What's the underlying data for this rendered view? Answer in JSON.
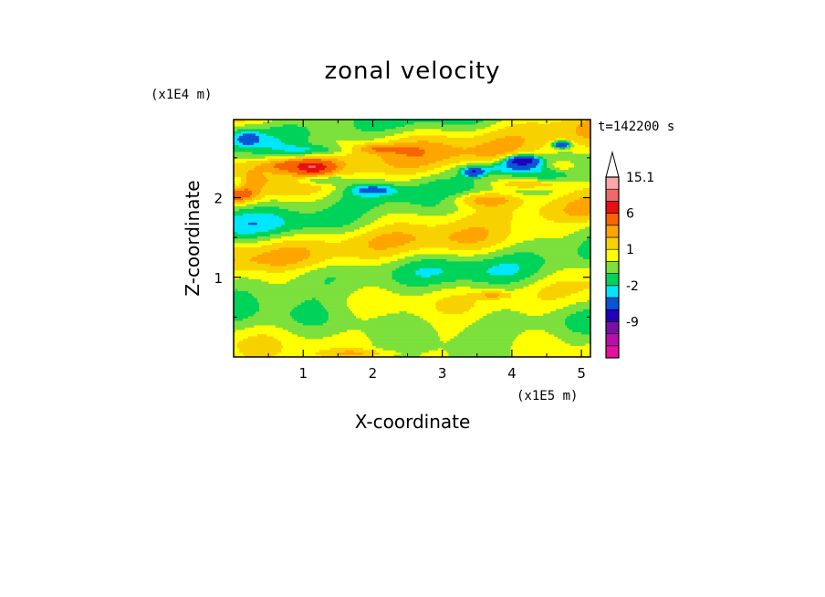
{
  "chart_data": {
    "type": "heatmap",
    "title": "zonal velocity",
    "xlabel": "X-coordinate",
    "ylabel": "Z-coordinate",
    "x_unit": "(x1E5 m)",
    "y_unit": "(x1E4 m)",
    "time_label": "t=142200 s",
    "xlim": [
      0,
      5.13
    ],
    "ylim": [
      0,
      2.98
    ],
    "x_ticks": [
      "1",
      "2",
      "3",
      "4",
      "5"
    ],
    "y_ticks": [
      "1",
      "2"
    ],
    "x_tick_values": [
      1,
      2,
      3,
      4,
      5
    ],
    "y_tick_values": [
      1,
      2
    ],
    "colorbar": {
      "labels": [
        "15.1",
        "6",
        "1",
        "-2",
        "-9"
      ],
      "label_values": [
        15.1,
        6,
        1,
        -2,
        -9
      ],
      "extend": "max",
      "levels": [
        -15,
        -12,
        -9,
        -6,
        -3,
        -2,
        -1,
        0,
        1,
        2,
        3,
        6,
        9,
        12,
        15.1
      ],
      "colors": [
        "#e60fa0",
        "#b90fa8",
        "#7b0fa5",
        "#1f00b8",
        "#0a54d6",
        "#00e6ff",
        "#00d35a",
        "#7de03c",
        "#ffff00",
        "#f8d200",
        "#ffa500",
        "#f76400",
        "#e61010",
        "#ee6a6a",
        "#f8a8a8",
        "#ffffff"
      ]
    }
  }
}
